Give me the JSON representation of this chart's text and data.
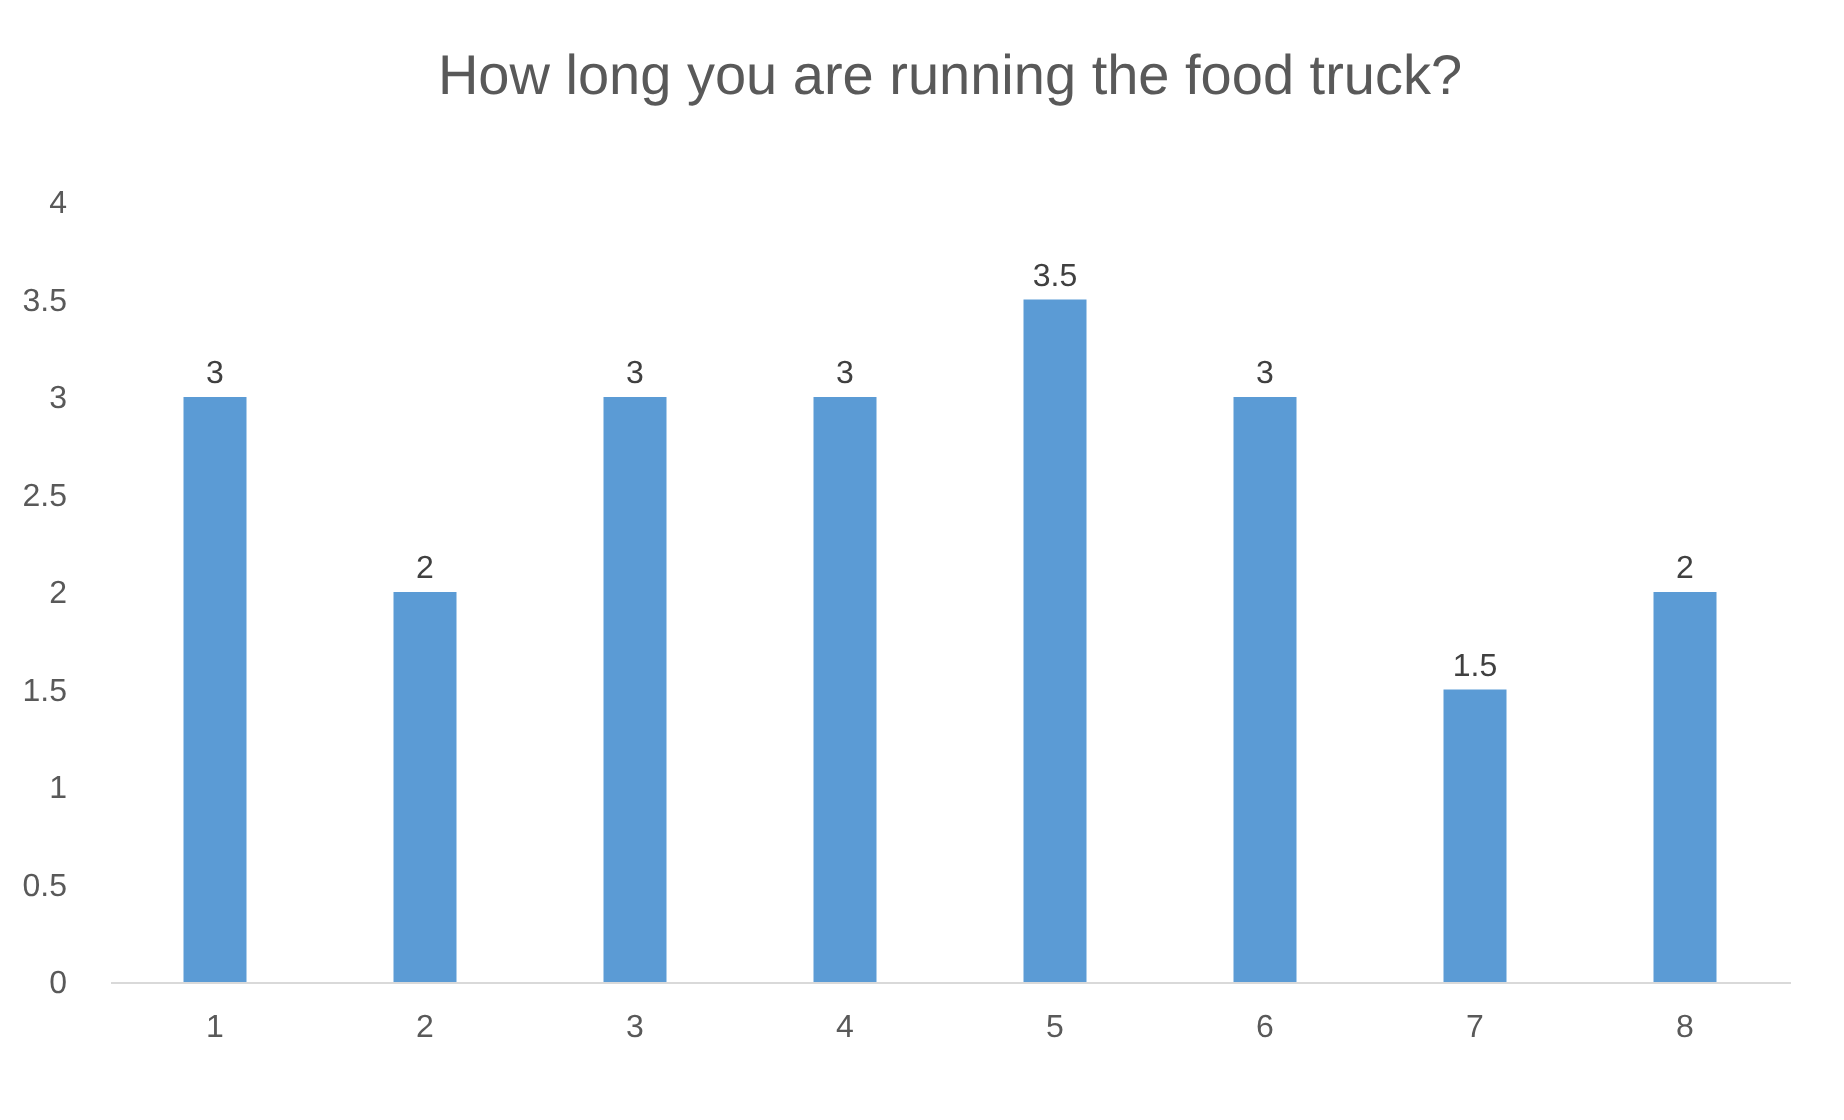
{
  "chart_data": {
    "type": "bar",
    "title": "How long you are running the food truck?",
    "categories": [
      "1",
      "2",
      "3",
      "4",
      "5",
      "6",
      "7",
      "8"
    ],
    "values": [
      3,
      2,
      3,
      3,
      3.5,
      3,
      1.5,
      2
    ],
    "color": "#5b9bd5",
    "ylim": [
      0,
      4
    ],
    "yticks": [
      0,
      0.5,
      1,
      1.5,
      2,
      2.5,
      3,
      3.5,
      4
    ],
    "grid": false,
    "data_labels": true
  }
}
